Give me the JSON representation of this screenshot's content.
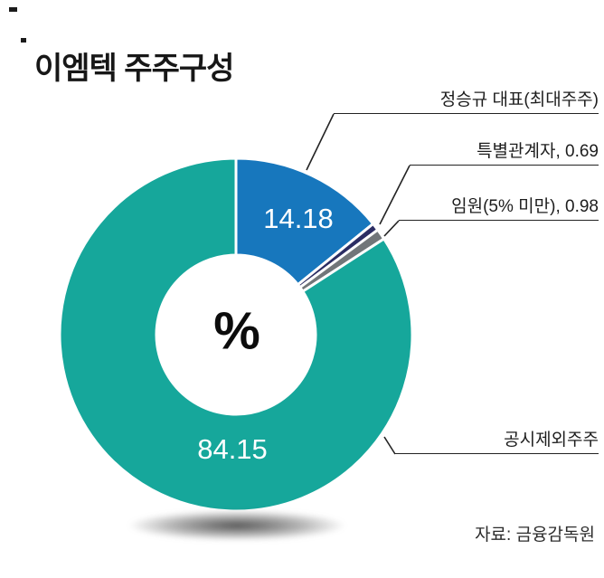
{
  "title": "이엠텍 주주구성",
  "center_symbol": "%",
  "source": "자료: 금융감독원",
  "chart_data": {
    "type": "pie",
    "donut": true,
    "title": "이엠텍 주주구성",
    "unit": "%",
    "start_angle_deg": 0,
    "direction": "clockwise",
    "legend_position": "right-callouts",
    "slices": [
      {
        "label": "정승규 대표(최대주주)",
        "value": 14.18,
        "inside_label": "14.18",
        "callout": "정승규 대표(최대주주)",
        "color": "#1777bd"
      },
      {
        "label": "특별관계자",
        "value": 0.69,
        "inside_label": "",
        "callout": "특별관계자, 0.69",
        "color": "#2b2d63"
      },
      {
        "label": "임원(5% 미만)",
        "value": 0.98,
        "inside_label": "",
        "callout": "임원(5% 미만), 0.98",
        "color": "#717679"
      },
      {
        "label": "공시제외주주",
        "value": 84.15,
        "inside_label": "84.15",
        "callout": "공시제외주주",
        "color": "#16a79b"
      }
    ]
  }
}
